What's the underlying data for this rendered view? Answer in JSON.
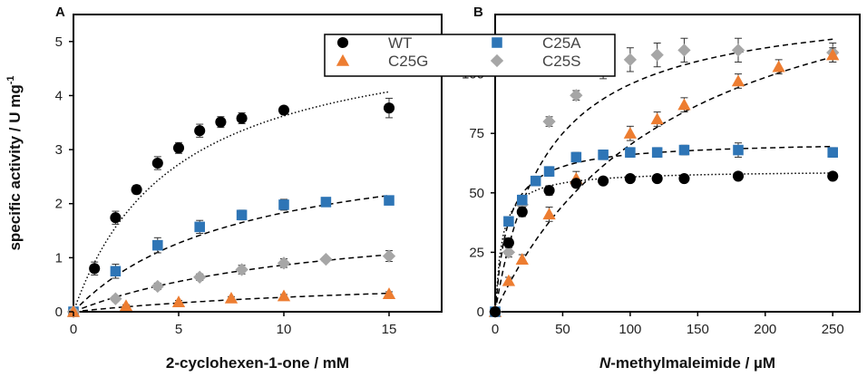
{
  "legend": [
    {
      "name": "WT",
      "marker": "circle",
      "color": "#000000"
    },
    {
      "name": "C25A",
      "marker": "square",
      "color": "#2E75B6"
    },
    {
      "name": "C25G",
      "marker": "triangle",
      "color": "#ED7D31"
    },
    {
      "name": "C25S",
      "marker": "diamond",
      "color": "#A6A6A6"
    }
  ],
  "ylabel_main": "specific activity / U mg",
  "ylabel_sup": "-1",
  "chart_data": [
    {
      "panel": "A",
      "type": "scatter",
      "xlabel": "2-cyclohexen-1-one / mM",
      "xlabel_italic_prefix": "",
      "ylabel": "specific activity / U mg-1",
      "xlim": [
        0,
        17.5
      ],
      "ylim": [
        0,
        5.5
      ],
      "xticks": [
        0,
        5,
        10,
        15
      ],
      "yticks": [
        0,
        1,
        2,
        3,
        4,
        5
      ],
      "series": [
        {
          "name": "WT",
          "marker": "circle",
          "color": "#000000",
          "fit": "dotted",
          "vmax": 5.4,
          "km": 4.9,
          "x": [
            0,
            1,
            2,
            3,
            4,
            5,
            6,
            7,
            8,
            10,
            15
          ],
          "y": [
            0,
            0.8,
            1.74,
            2.26,
            2.75,
            3.03,
            3.35,
            3.51,
            3.58,
            3.73,
            3.77
          ],
          "err": [
            0,
            0.12,
            0.12,
            0.08,
            0.12,
            0.1,
            0.12,
            0.1,
            0.1,
            0.07,
            0.18
          ]
        },
        {
          "name": "C25A",
          "marker": "square",
          "color": "#2E75B6",
          "fit": "dashed",
          "vmax": 3.3,
          "km": 8.0,
          "x": [
            0,
            2,
            4,
            6,
            8,
            10,
            12,
            15
          ],
          "y": [
            0,
            0.75,
            1.23,
            1.57,
            1.79,
            1.98,
            2.03,
            2.06
          ],
          "err": [
            0,
            0.13,
            0.14,
            0.12,
            0.09,
            0.1,
            0.05,
            0.04
          ]
        },
        {
          "name": "C25S",
          "marker": "diamond",
          "color": "#A6A6A6",
          "fit": "dashed",
          "vmax": 1.9,
          "km": 12.0,
          "x": [
            0,
            2,
            4,
            6,
            8,
            10,
            12,
            15
          ],
          "y": [
            0,
            0.24,
            0.47,
            0.64,
            0.78,
            0.9,
            0.97,
            1.03
          ],
          "err": [
            0,
            0.05,
            0.06,
            0.06,
            0.08,
            0.08,
            0.04,
            0.1
          ]
        },
        {
          "name": "C25G",
          "marker": "triangle",
          "color": "#ED7D31",
          "fit": "dashed",
          "vmax": 0.75,
          "km": 18.0,
          "x": [
            0,
            2.5,
            5,
            7.5,
            10,
            15
          ],
          "y": [
            0,
            0.11,
            0.18,
            0.25,
            0.29,
            0.33
          ],
          "err": [
            0,
            0.02,
            0.03,
            0.03,
            0.03,
            0.04
          ]
        }
      ]
    },
    {
      "panel": "B",
      "type": "scatter",
      "xlabel": "-methylmaleimide / µM",
      "xlabel_italic_prefix": "N",
      "ylabel": "",
      "xlim": [
        0,
        270
      ],
      "ylim": [
        0,
        125
      ],
      "xticks": [
        0,
        50,
        100,
        150,
        200,
        250
      ],
      "yticks": [
        0,
        25,
        50,
        75,
        100
      ],
      "series": [
        {
          "name": "C25S",
          "marker": "diamond",
          "color": "#A6A6A6",
          "fit": "dashed",
          "vmax": 132,
          "km": 38,
          "x": [
            0,
            10,
            20,
            40,
            60,
            80,
            100,
            120,
            140,
            180,
            250
          ],
          "y": [
            0,
            25,
            45,
            80,
            91,
            102,
            106,
            108,
            110,
            110,
            109
          ],
          "err": [
            0,
            2,
            3,
            2,
            2,
            4,
            5,
            5,
            5,
            5,
            4
          ]
        },
        {
          "name": "C25G",
          "marker": "triangle",
          "color": "#ED7D31",
          "fit": "dashed",
          "vmax": 165,
          "km": 135,
          "x": [
            0,
            10,
            20,
            40,
            60,
            100,
            120,
            140,
            180,
            210,
            250
          ],
          "y": [
            0,
            13,
            22,
            41,
            56,
            75,
            81,
            87,
            97,
            103,
            108
          ],
          "err": [
            0,
            1.5,
            2,
            3,
            3,
            3,
            3,
            3,
            3,
            3,
            3
          ]
        },
        {
          "name": "C25A",
          "marker": "square",
          "color": "#2E75B6",
          "fit": "dashed",
          "vmax": 72,
          "km": 9,
          "x": [
            0,
            10,
            20,
            30,
            40,
            60,
            80,
            100,
            120,
            140,
            180,
            250
          ],
          "y": [
            0,
            38,
            47,
            55,
            59,
            65,
            66,
            67,
            67,
            68,
            68,
            67
          ],
          "err": [
            0,
            2,
            2,
            2,
            2,
            2,
            2,
            2,
            2,
            2,
            3,
            2
          ]
        },
        {
          "name": "WT",
          "marker": "circle",
          "color": "#000000",
          "fit": "dotted",
          "vmax": 59.5,
          "km": 5,
          "x": [
            0,
            10,
            20,
            40,
            60,
            80,
            100,
            120,
            140,
            180,
            250
          ],
          "y": [
            0,
            29,
            42,
            51,
            54,
            55,
            56,
            56,
            56,
            57,
            57
          ],
          "err": [
            0,
            2,
            2,
            2,
            1,
            1,
            1,
            1,
            1,
            1,
            1
          ]
        }
      ]
    }
  ]
}
